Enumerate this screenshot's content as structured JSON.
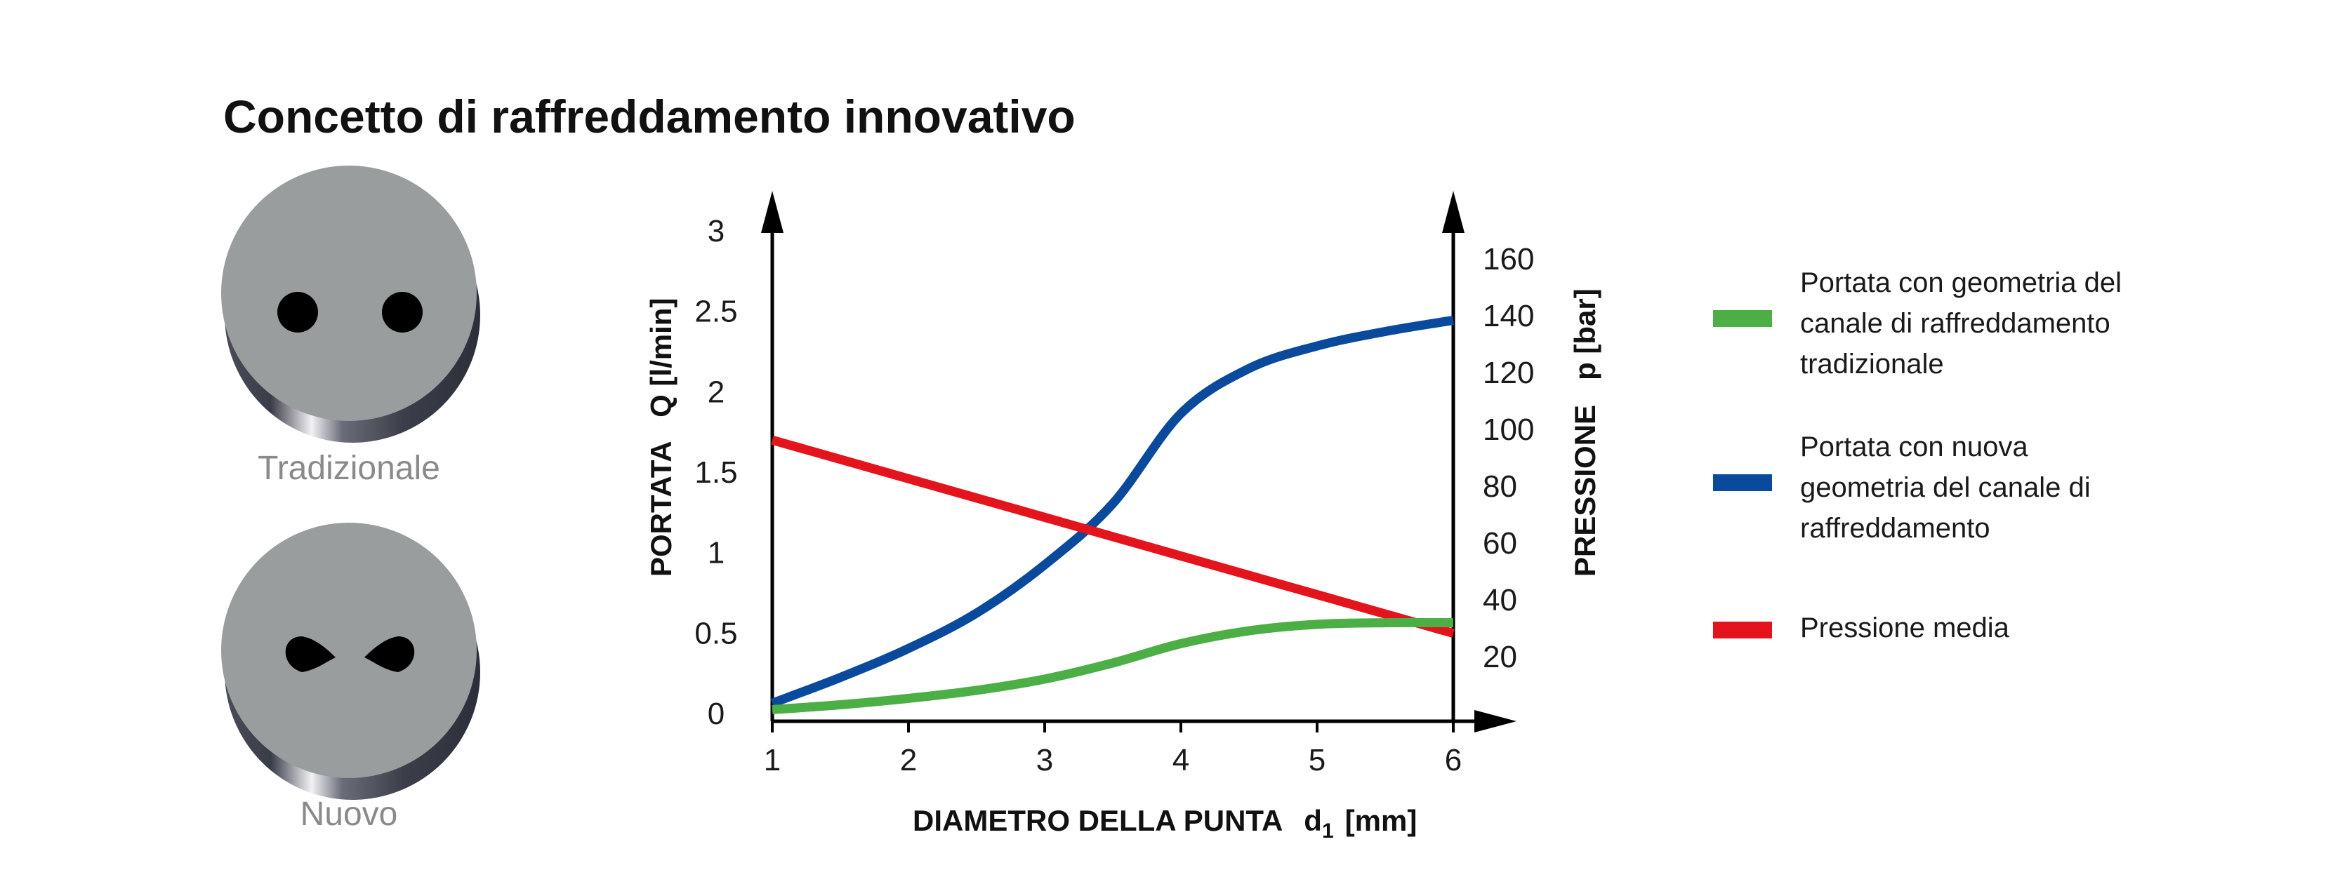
{
  "title": "Concetto di raffreddamento innovativo",
  "nozzles": {
    "traditional_label": "Tradizionale",
    "new_label": "Nuovo"
  },
  "colors": {
    "green": "#4caf46",
    "blue": "#0a4a9c",
    "red": "#e3141c",
    "disc": "#9a9d9d"
  },
  "legend": [
    {
      "series": "green",
      "lines": [
        "Portata con geometria del",
        "canale di raffreddamento",
        "tradizionale"
      ]
    },
    {
      "series": "blue",
      "lines": [
        "Portata con nuova",
        "geometria del canale di",
        "raffreddamento"
      ]
    },
    {
      "series": "red",
      "lines": [
        "Pressione media"
      ]
    }
  ],
  "chart_data": {
    "type": "line",
    "xlabel": "DIAMETRO DELLA PUNTA",
    "xlabel_symbol": "d",
    "xlabel_subscript": "1",
    "xlabel_unit": "[mm]",
    "ylabel_left": "PORTATA   Q [l/min]",
    "ylabel_right": "PRESSIONE   p [bar]",
    "xlim": [
      1,
      6
    ],
    "ylim_left": [
      0,
      3
    ],
    "ylim_right": [
      0,
      160
    ],
    "x_ticks": [
      "1",
      "2",
      "3",
      "4",
      "5",
      "6"
    ],
    "y_left_ticks": [
      "0",
      "0.5",
      "1",
      "1.5",
      "2",
      "2.5",
      "3"
    ],
    "y_right_ticks": [
      "20",
      "40",
      "60",
      "80",
      "100",
      "120",
      "140",
      "160"
    ],
    "grid": false,
    "series": [
      {
        "name": "Portata con geometria del canale di raffreddamento tradizionale",
        "key": "green",
        "axis": "left",
        "x": [
          1,
          1.5,
          2,
          2.5,
          3,
          3.5,
          4,
          4.5,
          5,
          5.5,
          6
        ],
        "y": [
          0.02,
          0.05,
          0.09,
          0.14,
          0.21,
          0.31,
          0.43,
          0.51,
          0.55,
          0.56,
          0.56
        ]
      },
      {
        "name": "Portata con nuova geometria del canale di raffreddamento",
        "key": "blue",
        "axis": "left",
        "x": [
          1,
          1.5,
          2,
          2.5,
          3,
          3.5,
          4,
          4.5,
          5,
          5.5,
          6
        ],
        "y": [
          0.06,
          0.22,
          0.4,
          0.62,
          0.92,
          1.3,
          1.86,
          2.14,
          2.28,
          2.37,
          2.44
        ]
      },
      {
        "name": "Pressione media",
        "key": "red",
        "axis": "right",
        "x": [
          1,
          6
        ],
        "y": [
          96,
          28
        ]
      }
    ]
  }
}
